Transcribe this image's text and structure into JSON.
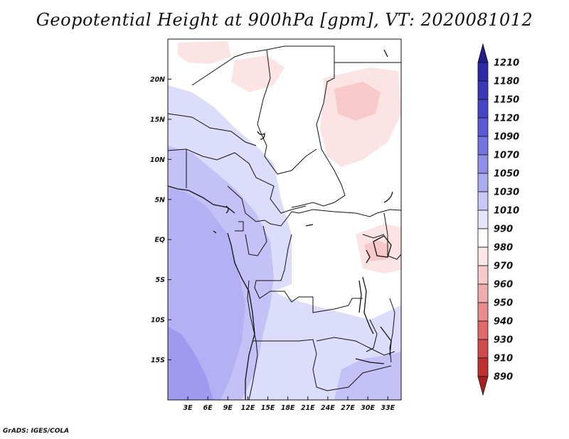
{
  "title": "Geopotential Height at 900hPa [gpm], VT: 2020081012",
  "credit": "GrADS: IGES/COLA",
  "chart_data": {
    "type": "map",
    "variable": "Geopotential Height",
    "level": "900hPa",
    "units": "gpm",
    "valid_time": "2020081012",
    "lon_ticks": [
      "3E",
      "6E",
      "9E",
      "12E",
      "15E",
      "18E",
      "21E",
      "24E",
      "27E",
      "30E",
      "33E"
    ],
    "lat_ticks": [
      "20N",
      "15N",
      "10N",
      "5N",
      "EQ",
      "5S",
      "10S",
      "15S"
    ],
    "lon_range": [
      0,
      35
    ],
    "lat_range": [
      -20,
      25
    ],
    "colorbar": {
      "levels": [
        1210,
        1180,
        1150,
        1120,
        1090,
        1070,
        1050,
        1030,
        1010,
        990,
        980,
        970,
        960,
        950,
        940,
        930,
        910,
        890
      ],
      "colors": [
        "#1e1e8c",
        "#2b2ba6",
        "#3838b8",
        "#4545c8",
        "#5a5ad6",
        "#7474e0",
        "#8f8fea",
        "#ababf2",
        "#c8c8f8",
        "#e4e4fc",
        "#ffffff",
        "#fce6e6",
        "#f6caca",
        "#efacac",
        "#e88c8c",
        "#e06a6a",
        "#d24a4a",
        "#c03030",
        "#aa1e1e"
      ]
    }
  }
}
